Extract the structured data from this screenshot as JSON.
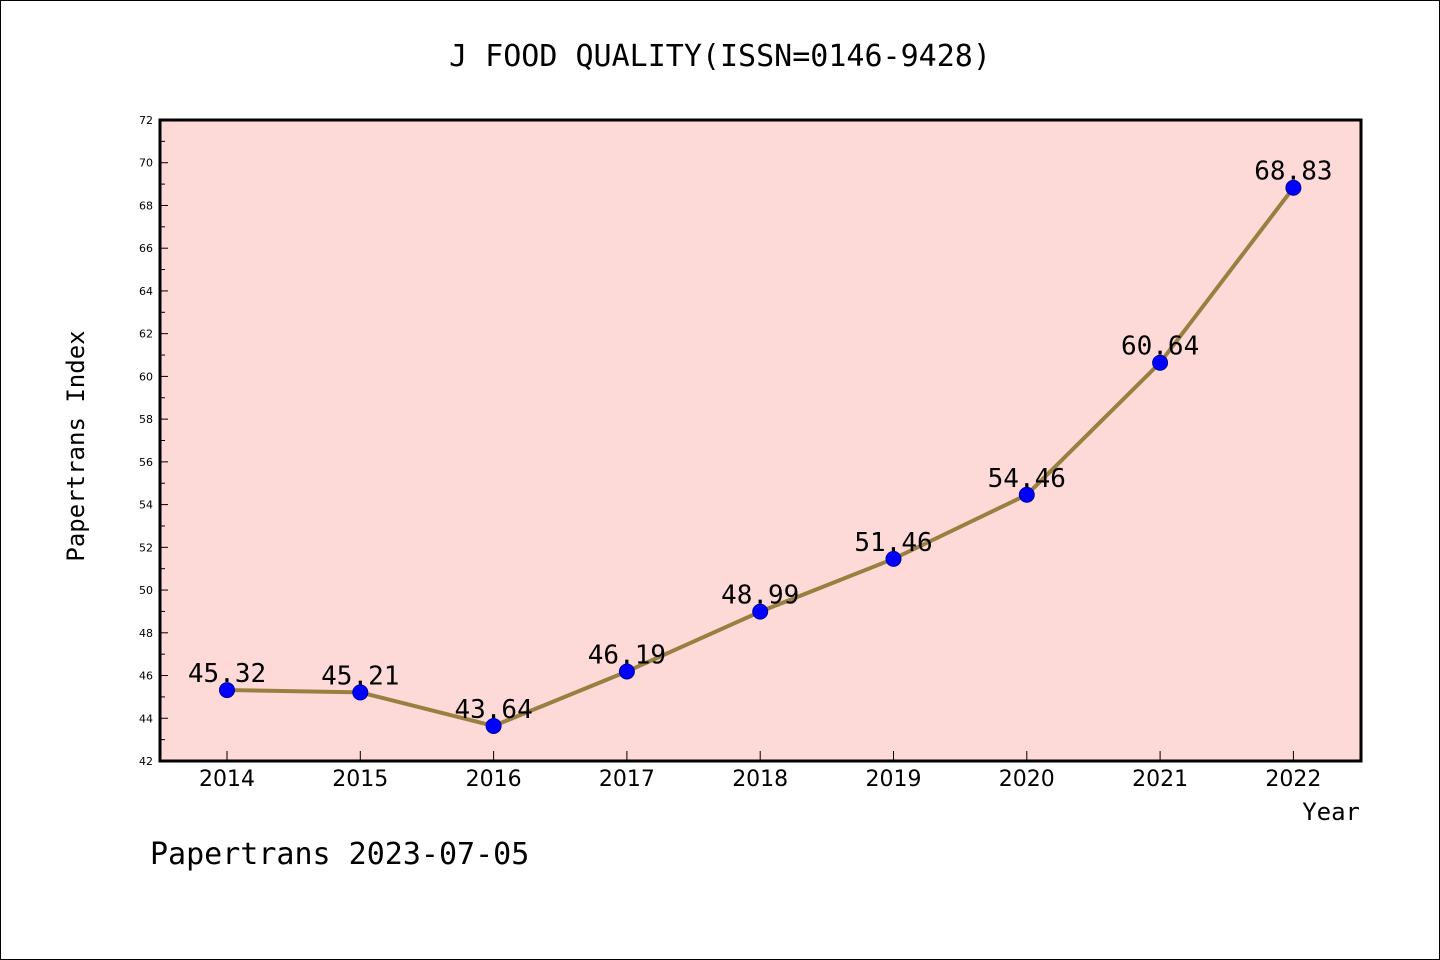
{
  "chart_data": {
    "type": "line",
    "title": "J FOOD QUALITY(ISSN=0146-9428)",
    "xlabel": "Year",
    "ylabel": "Papertrans Index",
    "categories": [
      "2014",
      "2015",
      "2016",
      "2017",
      "2018",
      "2019",
      "2020",
      "2021",
      "2022"
    ],
    "series": [
      {
        "values": [
          45.32,
          45.21,
          43.64,
          46.19,
          48.99,
          51.46,
          54.46,
          60.64,
          68.83
        ],
        "labels": [
          "45.32",
          "45.21",
          "43.64",
          "46.19",
          "48.99",
          "51.46",
          "54.46",
          "60.64",
          "68.83"
        ]
      }
    ],
    "ylim": [
      42,
      72
    ],
    "yticks": [
      "42",
      "44",
      "46",
      "48",
      "50",
      "52",
      "54",
      "56",
      "58",
      "60",
      "62",
      "64",
      "66",
      "68",
      "70",
      "72"
    ],
    "grid": false,
    "colors": {
      "plot_background": "#fddad8",
      "line": "#9a8040",
      "marker": "#0000ff"
    }
  },
  "footer": "Papertrans 2023-07-05"
}
